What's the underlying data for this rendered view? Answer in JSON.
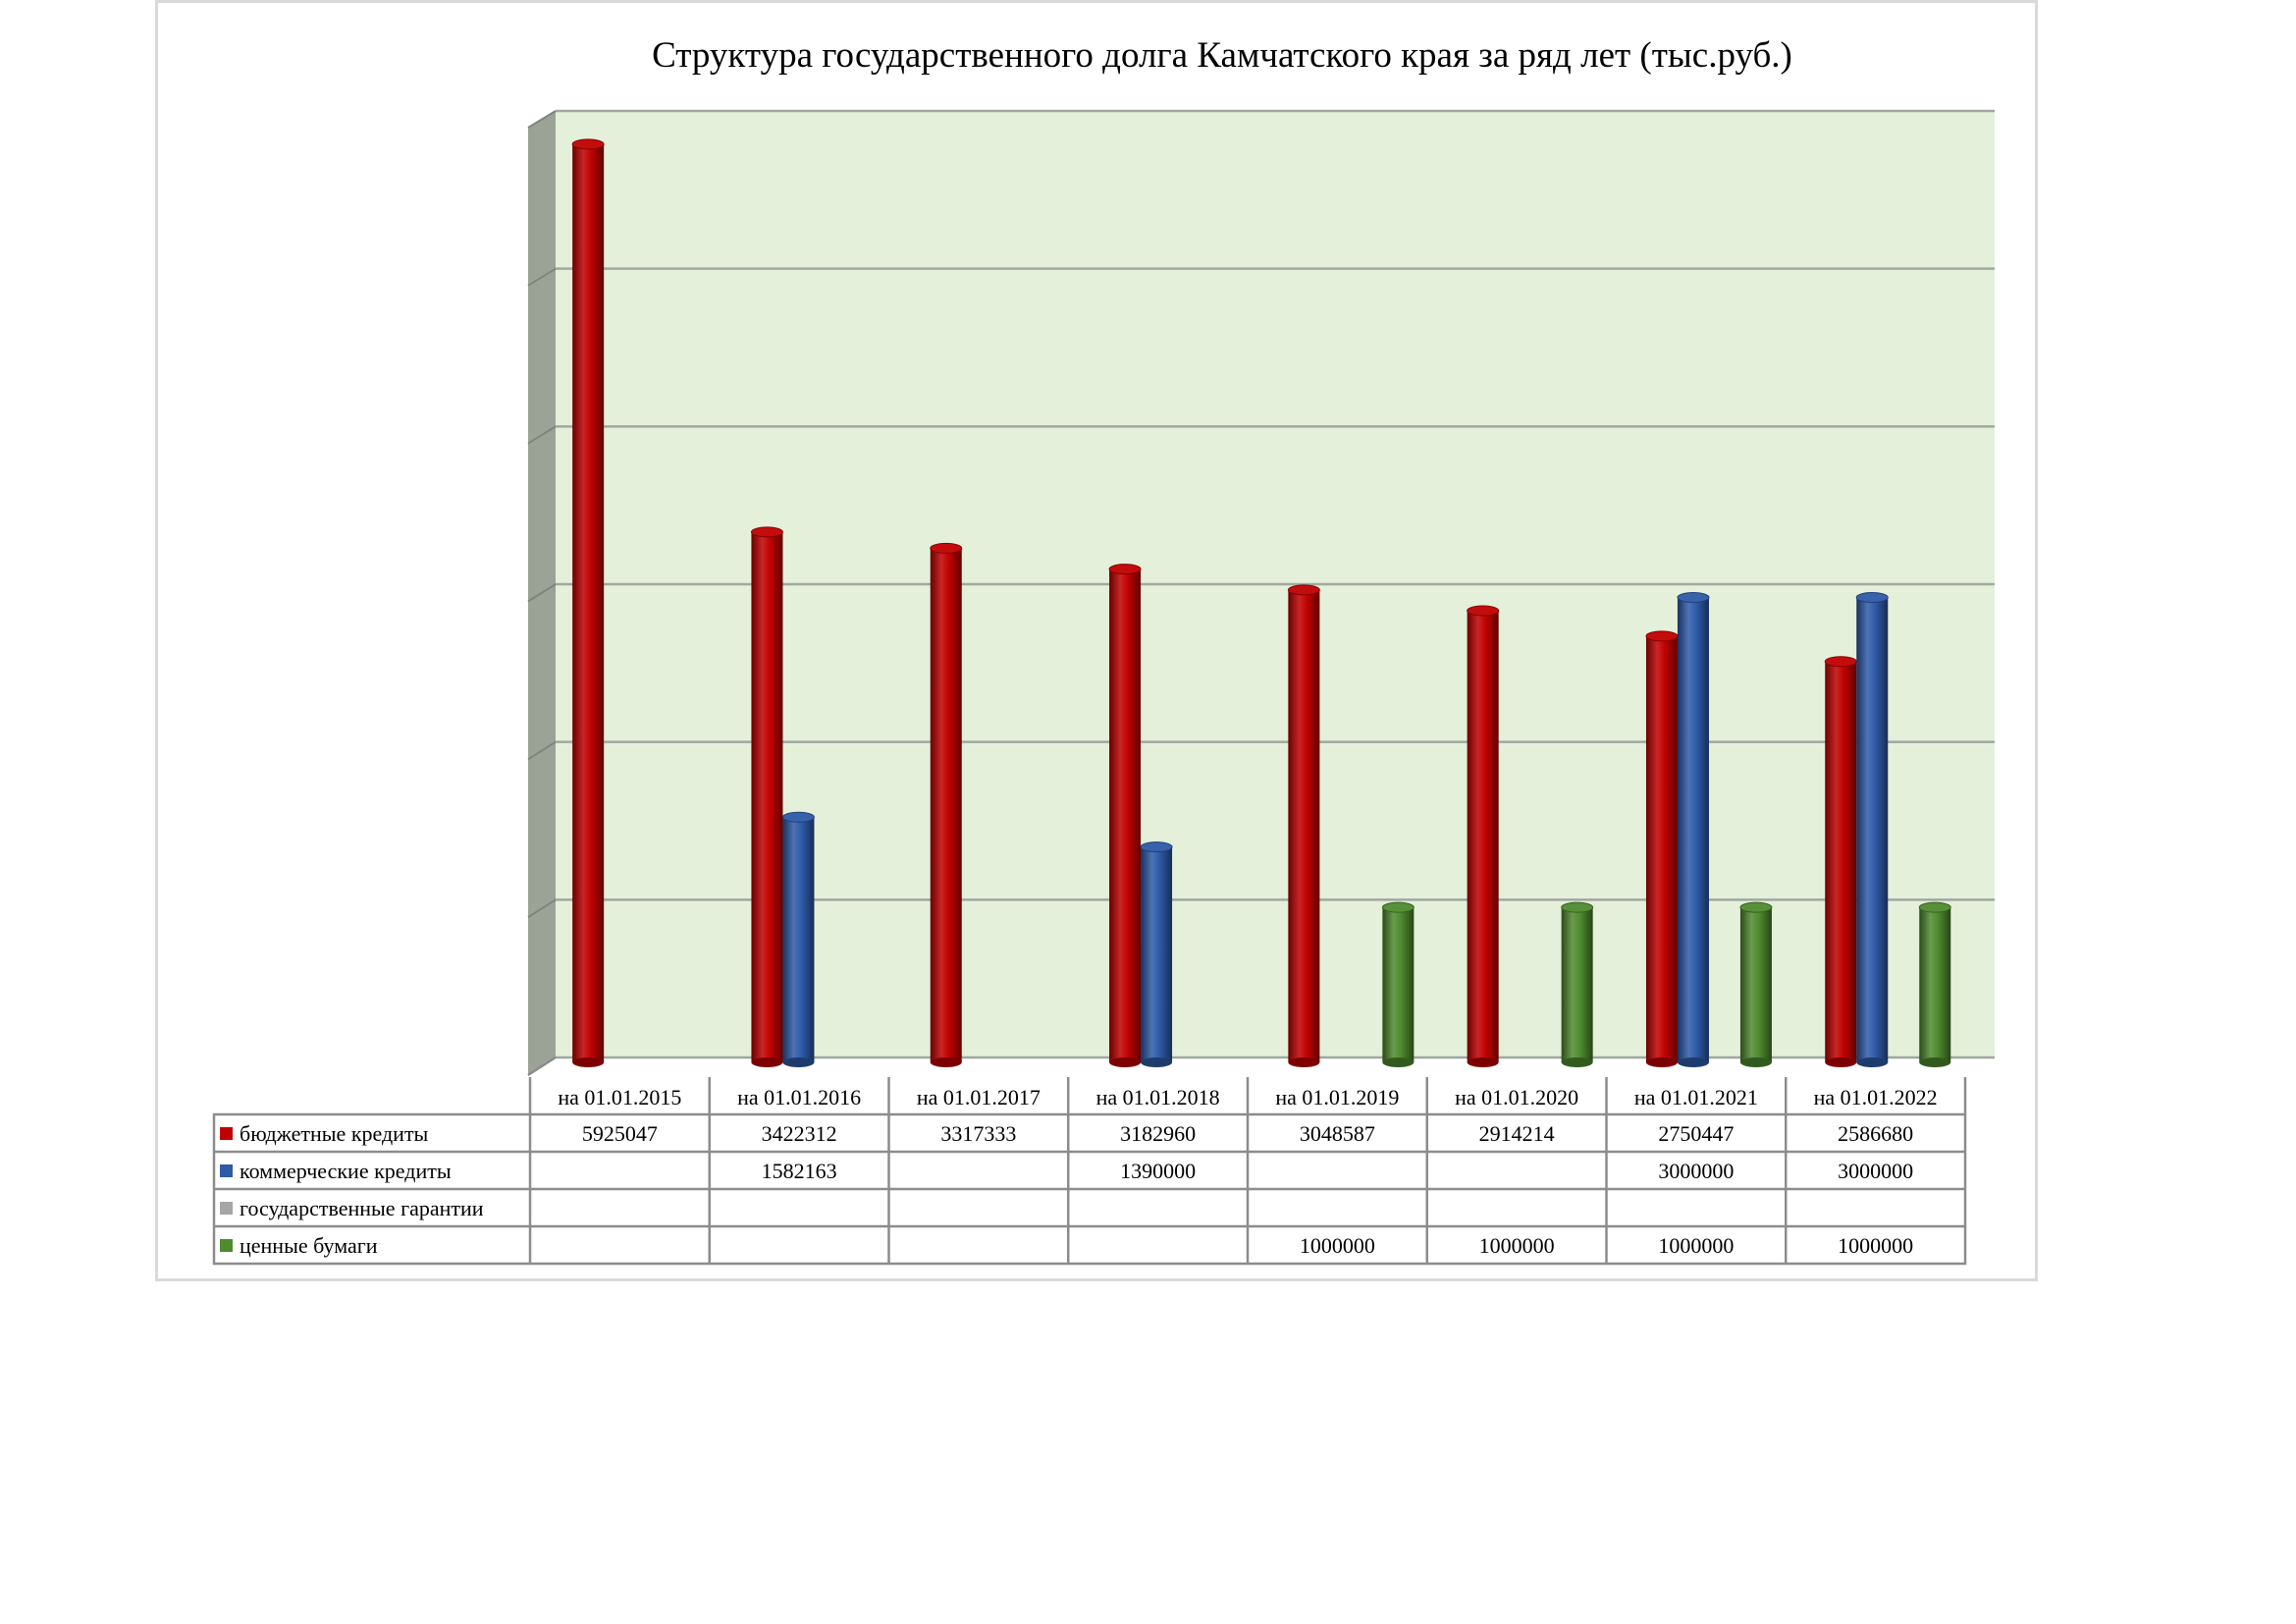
{
  "chart_data": {
    "type": "bar",
    "title": "Структура государственного долга Камчатского края за ряд лет (тыс.руб.)",
    "xlabel": "",
    "ylabel": "",
    "ylim": [
      0,
      6000000
    ],
    "grid": true,
    "legend": "data-table",
    "categories": [
      "на 01.01.2015",
      "на 01.01.2016",
      "на 01.01.2017",
      "на 01.01.2018",
      "на 01.01.2019",
      "на 01.01.2020",
      "на 01.01.2021",
      "на 01.01.2022"
    ],
    "series": [
      {
        "name": "бюджетные кредиты",
        "color": "#c00000",
        "values": [
          5925047,
          3422312,
          3317333,
          3182960,
          3048587,
          2914214,
          2750447,
          2586680
        ]
      },
      {
        "name": "коммерческие кредиты",
        "color": "#2e5aa8",
        "values": [
          null,
          1582163,
          null,
          1390000,
          null,
          null,
          3000000,
          3000000
        ]
      },
      {
        "name": "государственные гарантии",
        "color": "#a6a6a6",
        "values": [
          null,
          null,
          null,
          null,
          null,
          null,
          null,
          null
        ]
      },
      {
        "name": "ценные бумаги",
        "color": "#4e8a2e",
        "values": [
          null,
          null,
          null,
          null,
          1000000,
          1000000,
          1000000,
          1000000
        ]
      }
    ],
    "plot_background": "#e4f0da",
    "wall_color": "#9aa396"
  }
}
